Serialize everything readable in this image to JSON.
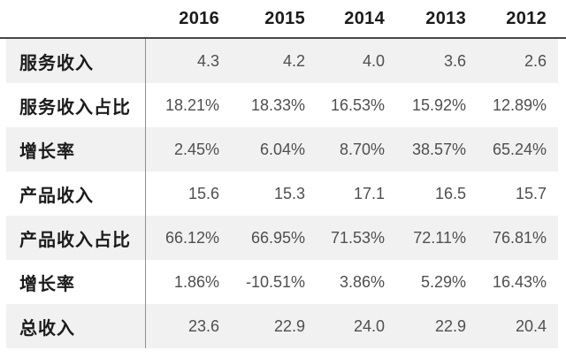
{
  "chart_data": {
    "type": "table",
    "title": "",
    "columns": [
      "2016",
      "2015",
      "2014",
      "2013",
      "2012"
    ],
    "rows": [
      {
        "label": "服务收入",
        "values": [
          "4.3",
          "4.2",
          "4.0",
          "3.6",
          "2.6"
        ]
      },
      {
        "label": "服务收入占比",
        "values": [
          "18.21%",
          "18.33%",
          "16.53%",
          "15.92%",
          "12.89%"
        ]
      },
      {
        "label": "增长率",
        "values": [
          "2.45%",
          "6.04%",
          "8.70%",
          "38.57%",
          "65.24%"
        ]
      },
      {
        "label": "产品收入",
        "values": [
          "15.6",
          "15.3",
          "17.1",
          "16.5",
          "15.7"
        ]
      },
      {
        "label": "产品收入占比",
        "values": [
          "66.12%",
          "66.95%",
          "71.53%",
          "72.11%",
          "76.81%"
        ]
      },
      {
        "label": "增长率",
        "values": [
          "1.86%",
          "-10.51%",
          "3.86%",
          "5.29%",
          "16.43%"
        ]
      },
      {
        "label": "总收入",
        "values": [
          "23.6",
          "22.9",
          "24.0",
          "22.9",
          "20.4"
        ]
      }
    ],
    "layout": {
      "zebra_striping": true,
      "striped_row_indexes": [
        0,
        2,
        4,
        6
      ],
      "numeric_alignment": "right",
      "label_column_separator": true
    }
  },
  "colors": {
    "background": "#ffffff",
    "stripe": "#f1f1f1",
    "header_rule": "#474747",
    "label_separator": "#8f8f8f",
    "header_text": "#1b1b1b",
    "value_text": "#4f4f4f"
  }
}
